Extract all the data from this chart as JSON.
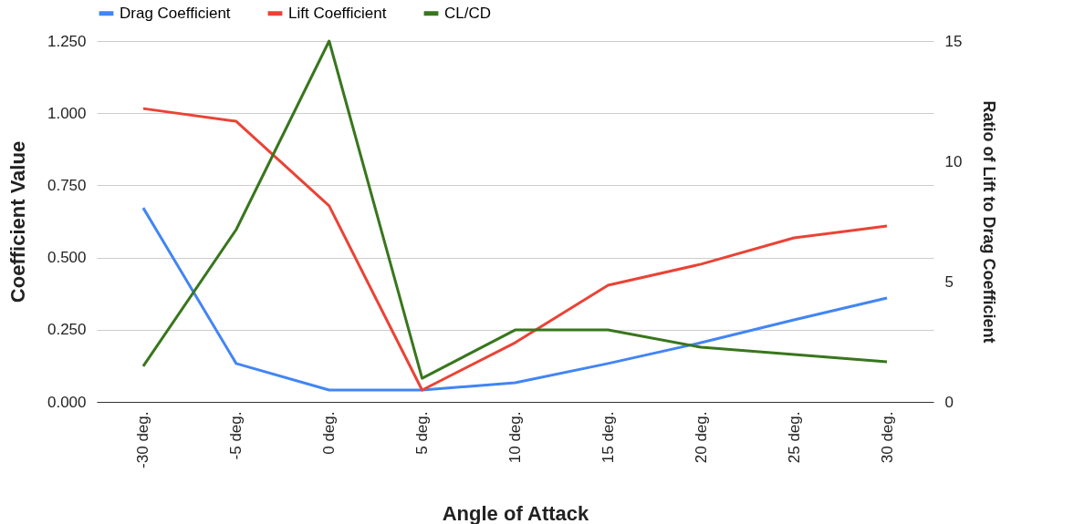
{
  "chart_data": {
    "type": "line",
    "xlabel": "Angle of Attack",
    "ylabel": "Coefficient Value",
    "y2label": "Ratio of Lift to Drag Coefficient",
    "categories": [
      "-30 deg.",
      "-5 deg.",
      "0 deg.",
      "5 deg.",
      "10 deg.",
      "15 deg.",
      "20 deg.",
      "25 deg.",
      "30 deg."
    ],
    "series": [
      {
        "name": "Drag Coefficient",
        "color": "#4285f4",
        "values": [
          0.672,
          0.133,
          0.041,
          0.041,
          0.066,
          0.133,
          0.205,
          0.284,
          0.36
        ]
      },
      {
        "name": "Lift Coefficient",
        "color": "#ea4335",
        "values": [
          1.016,
          0.972,
          0.679,
          0.041,
          0.205,
          0.404,
          0.477,
          0.568,
          0.609
        ]
      },
      {
        "name": "CL/CD",
        "color": "#38761d",
        "axis": "y2",
        "values": [
          1.48,
          7.16,
          15,
          0.98,
          2.99,
          2.99,
          2.27,
          1.97,
          1.67
        ]
      }
    ],
    "ylim": [
      0,
      1.25
    ],
    "yticks": [
      {
        "value": 0,
        "label": "0.000"
      },
      {
        "value": 0.25,
        "label": "0.250"
      },
      {
        "value": 0.5,
        "label": "0.500"
      },
      {
        "value": 0.75,
        "label": "0.750"
      },
      {
        "value": 1,
        "label": "1.000"
      },
      {
        "value": 1.25,
        "label": "1.250"
      }
    ],
    "y2lim": [
      0,
      15
    ],
    "y2ticks": [
      0,
      5,
      10,
      15
    ],
    "grid": "y",
    "legend": "top",
    "marker": "none",
    "line_style": "solid"
  }
}
